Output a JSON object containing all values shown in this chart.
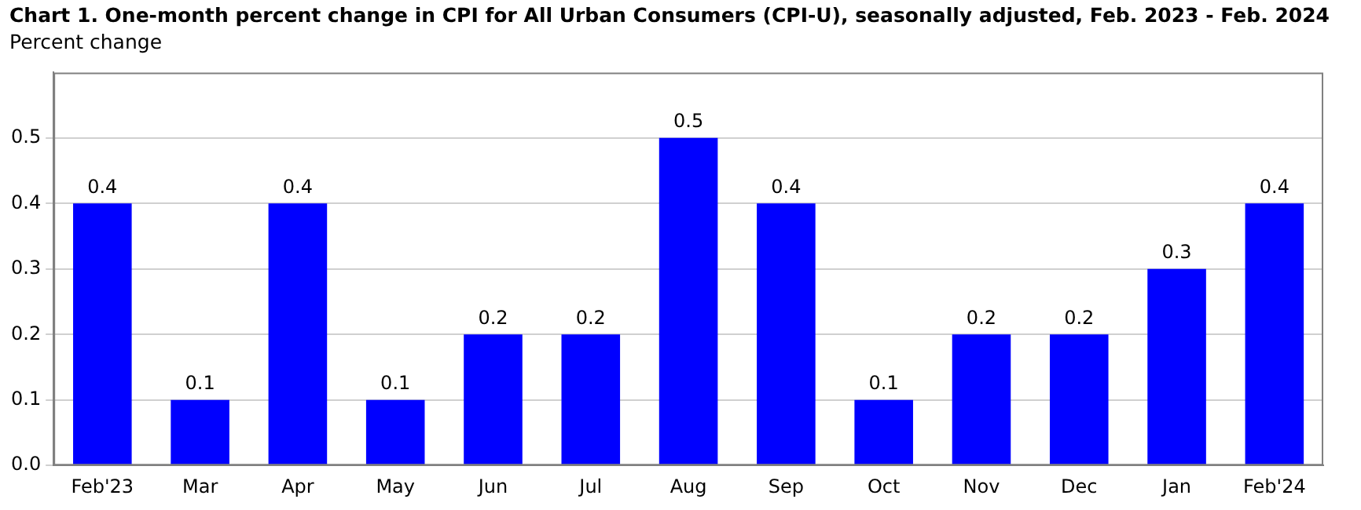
{
  "chart_data": {
    "type": "bar",
    "title": "Chart 1. One-month percent change in CPI for All Urban Consumers (CPI-U), seasonally adjusted, Feb. 2023 - Feb. 2024",
    "ylabel": "Percent change",
    "categories": [
      "Feb'23",
      "Mar",
      "Apr",
      "May",
      "Jun",
      "Jul",
      "Aug",
      "Sep",
      "Oct",
      "Nov",
      "Dec",
      "Jan",
      "Feb'24"
    ],
    "values": [
      0.4,
      0.1,
      0.4,
      0.1,
      0.2,
      0.2,
      0.5,
      0.4,
      0.1,
      0.2,
      0.2,
      0.3,
      0.4
    ],
    "color": "#0000ff",
    "ylim": [
      0,
      0.6
    ],
    "yticks": [
      {
        "value": 0,
        "label": "0.0"
      },
      0.1,
      0.2,
      0.3,
      0.4,
      0.5
    ],
    "grid": "y",
    "data_labels": true
  }
}
